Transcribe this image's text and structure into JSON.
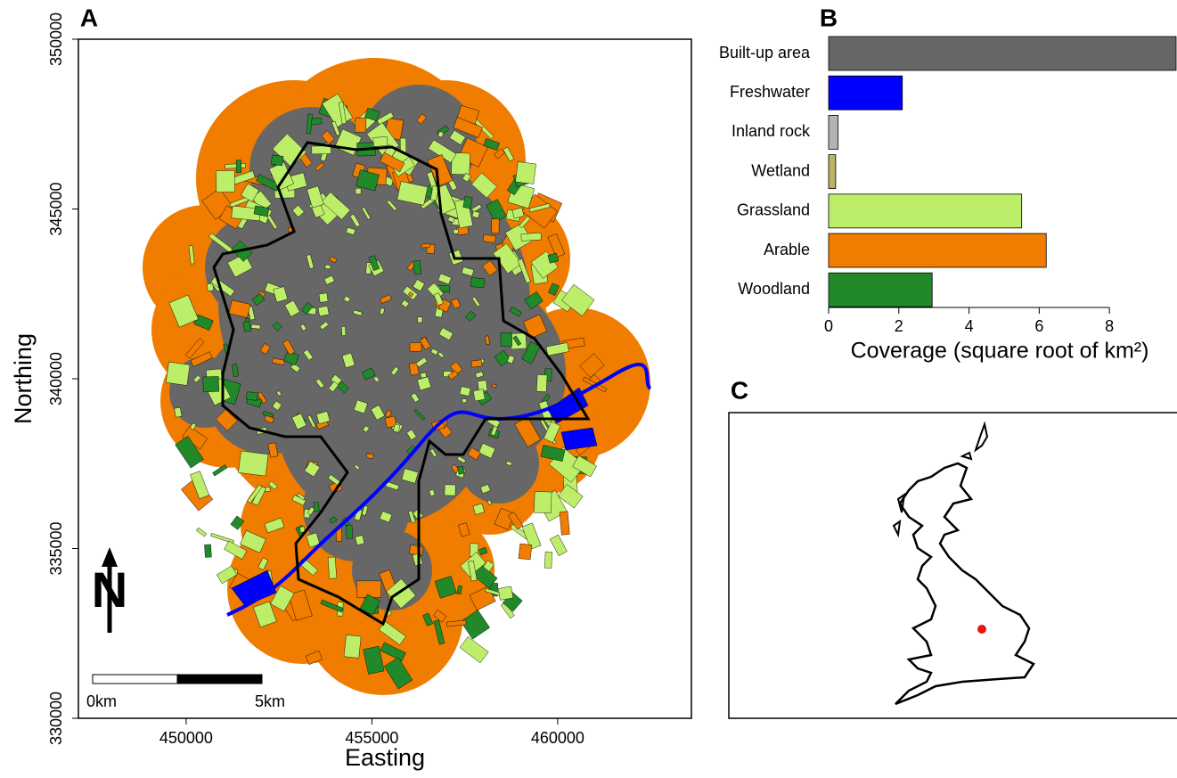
{
  "chart_data": [
    {
      "type": "map",
      "panel": "A",
      "xlabel": "Easting",
      "ylabel": "Northing",
      "xlim": [
        447100,
        463600
      ],
      "ylim": [
        330000,
        350000
      ],
      "xticks": [
        450000,
        455000,
        460000
      ],
      "yticks": [
        330000,
        335000,
        340000,
        345000,
        350000
      ],
      "scale_labels": [
        "0km",
        "5km"
      ],
      "north_label": "N"
    },
    {
      "type": "bar",
      "panel": "B",
      "orientation": "horizontal",
      "categories": [
        "Built-up area",
        "Freshwater",
        "Inland rock",
        "Wetland",
        "Grassland",
        "Arable",
        "Woodland"
      ],
      "values": [
        9.9,
        2.1,
        0.27,
        0.2,
        5.5,
        6.2,
        2.95
      ],
      "colors": [
        "#666666",
        "#0000ff",
        "#b3b3b3",
        "#bfb265",
        "#bdee6a",
        "#f07c00",
        "#22892a"
      ],
      "xlabel": "Coverage (square root of km²)",
      "xlim": [
        0,
        9.9
      ],
      "xticks": [
        0,
        2,
        4,
        6,
        8
      ]
    },
    {
      "type": "map",
      "panel": "C",
      "marker_color": "#ee1111"
    }
  ]
}
